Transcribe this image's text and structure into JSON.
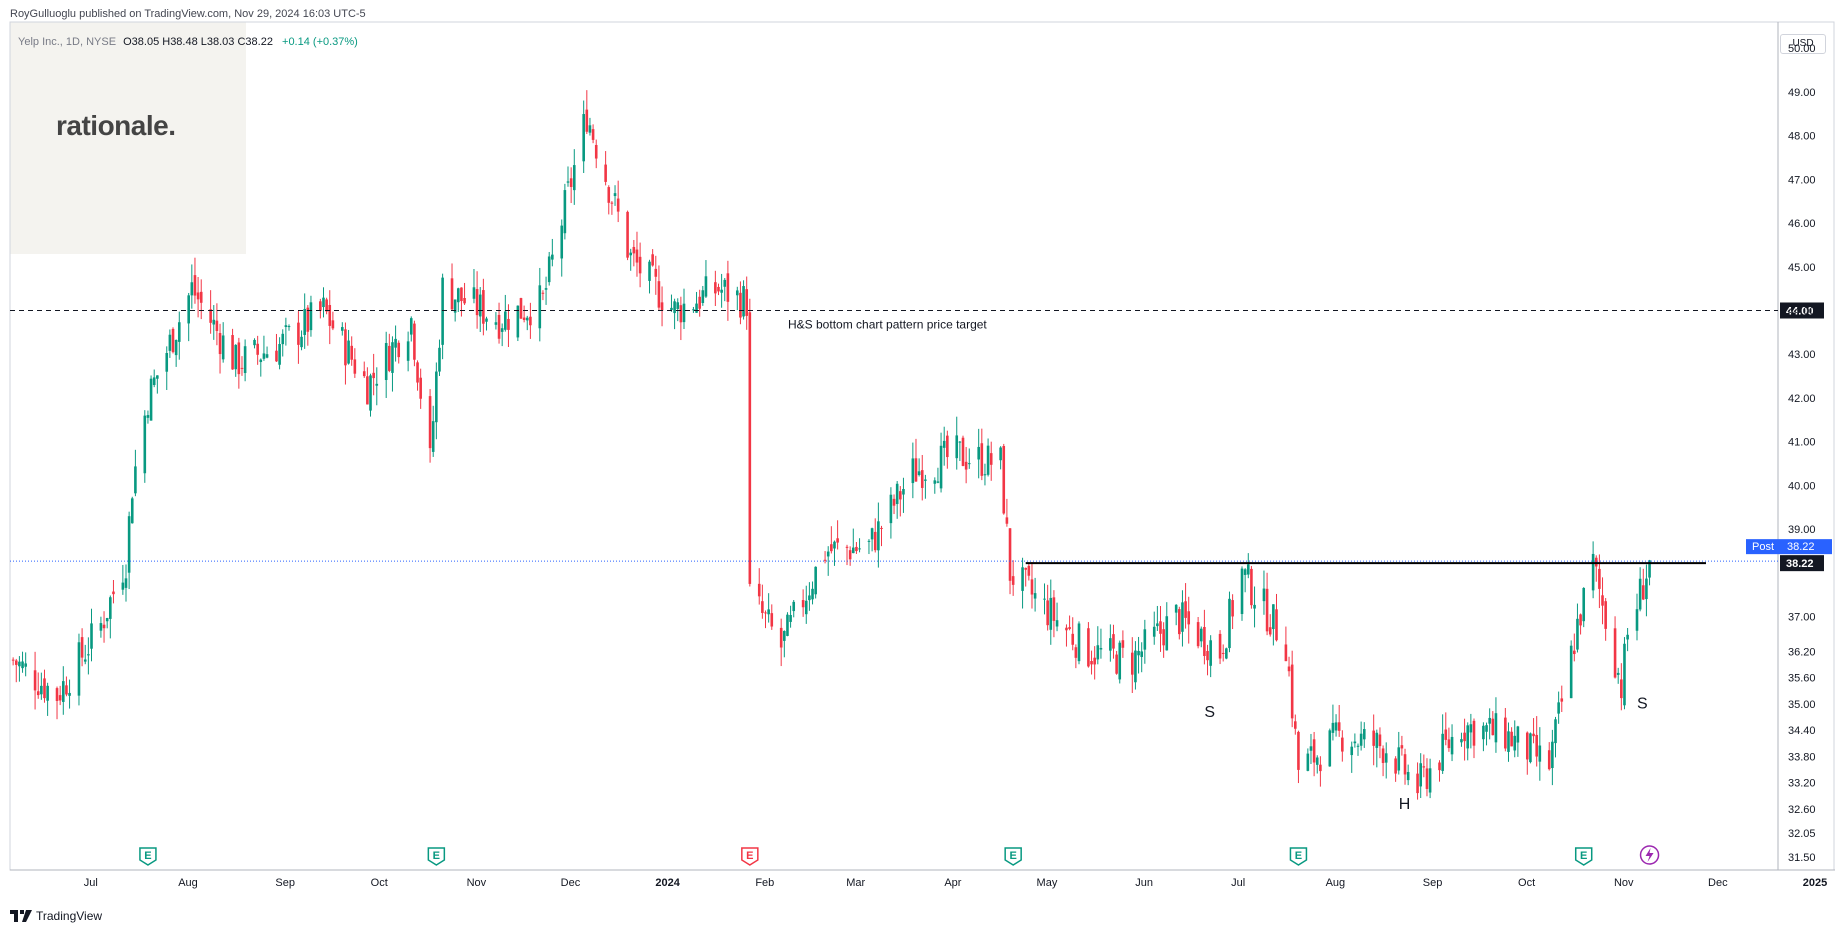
{
  "header": {
    "published": "RoyGulluoglu published on TradingView.com, Nov 29, 2024 16:03 UTC-5",
    "symbol": "Yelp Inc., 1D, NYSE",
    "ohlc": "O38.05  H38.48  L38.03  C38.22",
    "change": "+0.14 (+0.37%)"
  },
  "watermark": {
    "logo_text": "rationale."
  },
  "currency_button": "USD",
  "footer": {
    "brand": "TradingView"
  },
  "colors": {
    "up": "#089981",
    "down": "#f23645",
    "neckline": "#000000",
    "price_line": "#2962ff",
    "earnings": "#089981",
    "earnings_miss": "#f23645"
  },
  "chart_data": {
    "type": "candlestick",
    "title": "Yelp Inc., 1D, NYSE",
    "ylim": [
      31.2,
      50.6
    ],
    "y_ticks": [
      "31.50",
      "32.05",
      "32.60",
      "33.20",
      "33.80",
      "34.40",
      "35.00",
      "35.60",
      "36.20",
      "37.00",
      "38.22",
      "39.00",
      "40.00",
      "41.00",
      "42.00",
      "43.00",
      "44.00",
      "45.00",
      "46.00",
      "47.00",
      "48.00",
      "49.00",
      "50.00"
    ],
    "x_ticks": [
      "Jul",
      "Aug",
      "Sep",
      "Oct",
      "Nov",
      "Dec",
      "2024",
      "Feb",
      "Mar",
      "Apr",
      "May",
      "Jun",
      "Jul",
      "Aug",
      "Sep",
      "Oct",
      "Nov",
      "Dec",
      "2025"
    ],
    "price_anchors": [
      [
        "2023-06-26",
        36.0
      ],
      [
        "2023-07-10",
        35.2
      ],
      [
        "2023-07-24",
        36.8
      ],
      [
        "2023-08-01",
        38.3
      ],
      [
        "2023-08-03",
        40.0
      ],
      [
        "2023-08-08",
        42.0
      ],
      [
        "2023-08-22",
        44.5
      ],
      [
        "2023-09-05",
        42.8
      ],
      [
        "2023-09-19",
        43.2
      ],
      [
        "2023-10-03",
        44.0
      ],
      [
        "2023-10-17",
        42.3
      ],
      [
        "2023-10-31",
        43.8
      ],
      [
        "2023-11-06",
        40.5
      ],
      [
        "2023-11-10",
        44.5
      ],
      [
        "2023-11-28",
        43.8
      ],
      [
        "2023-12-12",
        44.2
      ],
      [
        "2023-12-26",
        48.5
      ],
      [
        "2024-01-09",
        45.2
      ],
      [
        "2024-01-23",
        44.0
      ],
      [
        "2024-02-06",
        44.5
      ],
      [
        "2024-02-15",
        44.2
      ],
      [
        "2024-02-16",
        37.5
      ],
      [
        "2024-02-26",
        36.3
      ],
      [
        "2024-03-11",
        38.5
      ],
      [
        "2024-03-25",
        38.6
      ],
      [
        "2024-04-08",
        40.3
      ],
      [
        "2024-04-22",
        40.7
      ],
      [
        "2024-05-06",
        40.5
      ],
      [
        "2024-05-09",
        38.0
      ],
      [
        "2024-05-20",
        37.2
      ],
      [
        "2024-06-03",
        36.2
      ],
      [
        "2024-06-17",
        36.0
      ],
      [
        "2024-07-01",
        37.0
      ],
      [
        "2024-07-15",
        36.2
      ],
      [
        "2024-07-22",
        38.0
      ],
      [
        "2024-08-05",
        36.4
      ],
      [
        "2024-08-09",
        33.5
      ],
      [
        "2024-08-23",
        34.3
      ],
      [
        "2024-09-06",
        34.0
      ],
      [
        "2024-09-16",
        33.1
      ],
      [
        "2024-09-30",
        34.5
      ],
      [
        "2024-10-14",
        34.3
      ],
      [
        "2024-10-28",
        33.6
      ],
      [
        "2024-11-06",
        36.8
      ],
      [
        "2024-11-11",
        38.2
      ],
      [
        "2024-11-20",
        35.4
      ],
      [
        "2024-11-22",
        36.6
      ],
      [
        "2024-11-29",
        38.22
      ]
    ],
    "annotations": [
      {
        "text": "H&S bottom chart pattern price target",
        "level": 44.0
      },
      {
        "text": "S",
        "date": "2024-07-10",
        "level": 34.7
      },
      {
        "text": "H",
        "date": "2024-09-10",
        "level": 32.6
      },
      {
        "text": "S",
        "date": "2024-11-25",
        "level": 34.9
      }
    ],
    "target_level": 44.0,
    "target_label": "44.00",
    "neckline": {
      "level": 38.22,
      "from": "2024-05-14",
      "to": "2024-12-17"
    },
    "last_price": 38.22,
    "last_price_label": "38.22",
    "post_label": "Post",
    "post_price": "38.22",
    "earnings_events": [
      {
        "date": "2023-08-08",
        "icon": "earnings-icon",
        "label": "E"
      },
      {
        "date": "2023-11-08",
        "icon": "earnings-icon",
        "label": "E"
      },
      {
        "date": "2024-02-16",
        "icon": "earnings-icon",
        "label": "E",
        "miss": true
      },
      {
        "date": "2024-05-10",
        "icon": "earnings-icon",
        "label": "E"
      },
      {
        "date": "2024-08-09",
        "icon": "earnings-icon",
        "label": "E"
      },
      {
        "date": "2024-11-08",
        "icon": "earnings-icon",
        "label": "E"
      },
      {
        "date": "2024-11-29",
        "icon": "dividend-bolt-icon",
        "label": ""
      }
    ]
  }
}
